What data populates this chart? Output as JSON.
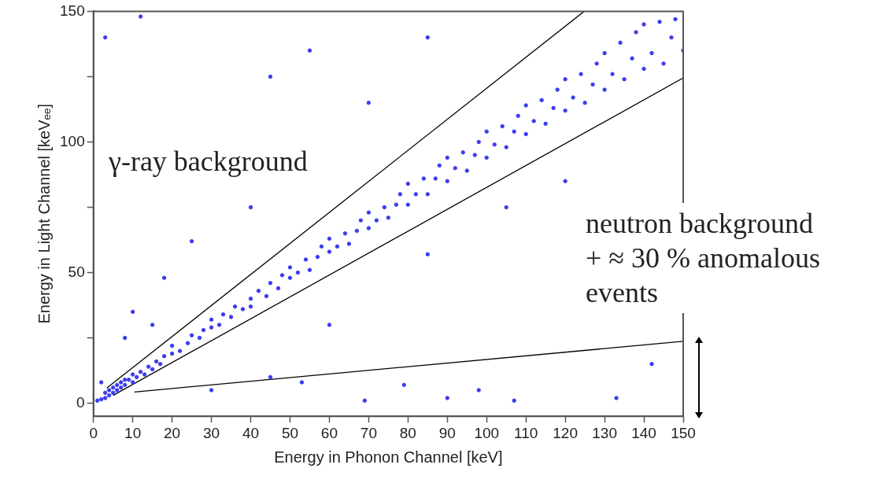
{
  "chart_data": {
    "type": "scatter",
    "xlabel": "Energy in Phonon Channel [keV]",
    "ylabel": "Energy in Light Channel [keVₑₑ]",
    "xlim": [
      0,
      150
    ],
    "xticks": [
      0,
      10,
      20,
      30,
      40,
      50,
      60,
      70,
      80,
      90,
      100,
      110,
      120,
      130,
      140,
      150
    ],
    "ylim": [
      -5,
      150
    ],
    "yticks": [
      0,
      {
        "value": 25,
        "label": null
      },
      50,
      {
        "value": 75,
        "label": null
      },
      100,
      {
        "value": 125,
        "label": null
      },
      150
    ],
    "grid": false,
    "legend": false,
    "marker": "circle",
    "annotations": [
      "γ-ray background",
      "neutron background\n+ ≈ 30 % anomalous\nevents"
    ],
    "series": [
      {
        "color": "#3c3cf0",
        "x": [
          1,
          2,
          3,
          3,
          4,
          4,
          5,
          5,
          6,
          6,
          7,
          7,
          8,
          8,
          9,
          10,
          10,
          11,
          12,
          13,
          14,
          15,
          16,
          17,
          18,
          20,
          20,
          22,
          24,
          25,
          27,
          28,
          30,
          30,
          32,
          33,
          35,
          36,
          38,
          40,
          40,
          42,
          44,
          45,
          47,
          48,
          50,
          50,
          52,
          54,
          55,
          57,
          58,
          60,
          60,
          62,
          64,
          65,
          67,
          68,
          70,
          70,
          72,
          74,
          75,
          77,
          78,
          80,
          80,
          82,
          84,
          85,
          87,
          88,
          90,
          90,
          92,
          94,
          95,
          97,
          98,
          100,
          100,
          102,
          104,
          105,
          107,
          108,
          110,
          110,
          112,
          114,
          115,
          117,
          118,
          120,
          120,
          122,
          124,
          125,
          127,
          128,
          130,
          130,
          132,
          134,
          135,
          137,
          138,
          140,
          140,
          142,
          144,
          145,
          147,
          148,
          150,
          3,
          12,
          45,
          55,
          85,
          70,
          40,
          25,
          18,
          10,
          8,
          15,
          60,
          45,
          53,
          69,
          79,
          90,
          98,
          107,
          133,
          142,
          2,
          30,
          105,
          120,
          85
        ],
        "values": [
          1,
          1.5,
          2,
          4,
          3,
          5,
          4,
          6,
          5,
          7,
          6,
          8,
          7,
          9,
          9,
          8,
          11,
          10,
          12,
          11,
          14,
          13,
          16,
          15,
          18,
          19,
          22,
          20,
          23,
          26,
          25,
          28,
          29,
          32,
          30,
          34,
          33,
          37,
          36,
          40,
          37,
          43,
          41,
          46,
          44,
          49,
          48,
          52,
          50,
          55,
          51,
          56,
          60,
          58,
          63,
          60,
          65,
          61,
          66,
          70,
          67,
          73,
          70,
          75,
          71,
          76,
          80,
          76,
          84,
          80,
          86,
          80,
          86,
          91,
          85,
          94,
          90,
          96,
          89,
          95,
          100,
          94,
          104,
          99,
          106,
          98,
          104,
          110,
          103,
          114,
          108,
          116,
          107,
          113,
          120,
          112,
          124,
          117,
          126,
          115,
          122,
          130,
          120,
          134,
          126,
          138,
          124,
          132,
          142,
          128,
          145,
          134,
          146,
          130,
          140,
          147,
          135,
          140,
          148,
          125,
          135,
          140,
          115,
          75,
          62,
          48,
          35,
          25,
          30,
          30,
          10,
          8,
          1,
          7,
          2,
          5,
          1,
          2,
          15,
          8,
          5,
          75,
          85,
          57
        ]
      },
      {
        "type": "line",
        "color": "#000000",
        "marker": "none",
        "x": [
          3.4,
          124.8
        ],
        "values": [
          5.8,
          150
        ]
      },
      {
        "type": "line",
        "color": "#000000",
        "marker": "none",
        "x": [
          5,
          150
        ],
        "values": [
          3,
          124.5
        ]
      },
      {
        "type": "line",
        "color": "#000000",
        "marker": "none",
        "x": [
          10.4,
          150
        ],
        "values": [
          4.3,
          23.7
        ]
      }
    ]
  }
}
